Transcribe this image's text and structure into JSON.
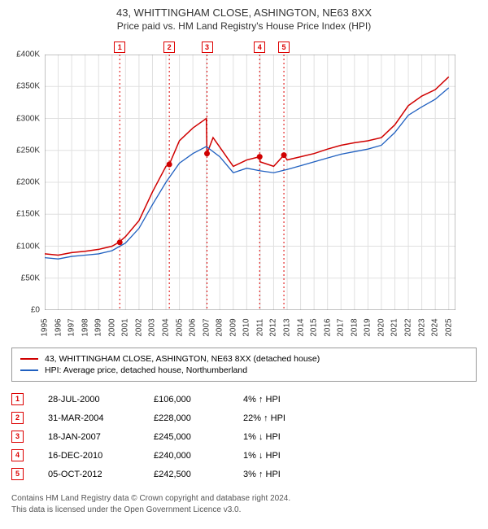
{
  "title": "43, WHITTINGHAM CLOSE, ASHINGTON, NE63 8XX",
  "subtitle": "Price paid vs. HM Land Registry's House Price Index (HPI)",
  "chart": {
    "type": "line",
    "background_color": "#ffffff",
    "grid_color": "#e0e0e0",
    "axis_color": "#888888",
    "xlim": [
      1995,
      2025.5
    ],
    "ylim": [
      0,
      400000
    ],
    "ytick_step": 50000,
    "y_ticks": [
      "£0",
      "£50K",
      "£100K",
      "£150K",
      "£200K",
      "£250K",
      "£300K",
      "£350K",
      "£400K"
    ],
    "x_ticks": [
      1995,
      1996,
      1997,
      1998,
      1999,
      2000,
      2001,
      2002,
      2003,
      2004,
      2005,
      2006,
      2007,
      2008,
      2009,
      2010,
      2011,
      2012,
      2013,
      2014,
      2015,
      2016,
      2017,
      2018,
      2019,
      2020,
      2021,
      2022,
      2023,
      2024,
      2025
    ],
    "series": [
      {
        "name": "43, WHITTINGHAM CLOSE, ASHINGTON, NE63 8XX (detached house)",
        "color": "#d00000",
        "line_width": 1.5,
        "data": [
          [
            1995,
            88000
          ],
          [
            1996,
            86000
          ],
          [
            1997,
            90000
          ],
          [
            1998,
            92000
          ],
          [
            1999,
            95000
          ],
          [
            2000,
            100000
          ],
          [
            2000.5,
            106000
          ],
          [
            2001,
            115000
          ],
          [
            2002,
            140000
          ],
          [
            2003,
            185000
          ],
          [
            2004,
            225000
          ],
          [
            2004.25,
            228000
          ],
          [
            2005,
            265000
          ],
          [
            2006,
            285000
          ],
          [
            2007,
            300000
          ],
          [
            2007.05,
            245000
          ],
          [
            2007.5,
            270000
          ],
          [
            2008,
            255000
          ],
          [
            2009,
            225000
          ],
          [
            2010,
            235000
          ],
          [
            2010.95,
            240000
          ],
          [
            2011,
            232000
          ],
          [
            2012,
            225000
          ],
          [
            2012.76,
            242500
          ],
          [
            2013,
            235000
          ],
          [
            2014,
            240000
          ],
          [
            2015,
            245000
          ],
          [
            2016,
            252000
          ],
          [
            2017,
            258000
          ],
          [
            2018,
            262000
          ],
          [
            2019,
            265000
          ],
          [
            2020,
            270000
          ],
          [
            2021,
            290000
          ],
          [
            2022,
            320000
          ],
          [
            2023,
            335000
          ],
          [
            2024,
            345000
          ],
          [
            2025,
            365000
          ]
        ]
      },
      {
        "name": "HPI: Average price, detached house, Northumberland",
        "color": "#2060c0",
        "line_width": 1.3,
        "data": [
          [
            1995,
            82000
          ],
          [
            1996,
            80000
          ],
          [
            1997,
            84000
          ],
          [
            1998,
            86000
          ],
          [
            1999,
            88000
          ],
          [
            2000,
            93000
          ],
          [
            2001,
            105000
          ],
          [
            2002,
            128000
          ],
          [
            2003,
            165000
          ],
          [
            2004,
            200000
          ],
          [
            2005,
            230000
          ],
          [
            2006,
            245000
          ],
          [
            2007,
            256000
          ],
          [
            2008,
            240000
          ],
          [
            2009,
            215000
          ],
          [
            2010,
            222000
          ],
          [
            2011,
            218000
          ],
          [
            2012,
            215000
          ],
          [
            2013,
            220000
          ],
          [
            2014,
            226000
          ],
          [
            2015,
            232000
          ],
          [
            2016,
            238000
          ],
          [
            2017,
            244000
          ],
          [
            2018,
            248000
          ],
          [
            2019,
            252000
          ],
          [
            2020,
            258000
          ],
          [
            2021,
            278000
          ],
          [
            2022,
            305000
          ],
          [
            2023,
            318000
          ],
          [
            2024,
            330000
          ],
          [
            2025,
            348000
          ]
        ]
      }
    ],
    "markers": [
      {
        "n": "1",
        "x": 2000.57,
        "y": 106000
      },
      {
        "n": "2",
        "x": 2004.25,
        "y": 228000
      },
      {
        "n": "3",
        "x": 2007.05,
        "y": 245000
      },
      {
        "n": "4",
        "x": 2010.96,
        "y": 240000
      },
      {
        "n": "5",
        "x": 2012.76,
        "y": 242500
      }
    ],
    "marker_color": "#d00000",
    "reference_line_color": "#d00000"
  },
  "legend": [
    {
      "color": "#d00000",
      "label": "43, WHITTINGHAM CLOSE, ASHINGTON, NE63 8XX (detached house)"
    },
    {
      "color": "#2060c0",
      "label": "HPI: Average price, detached house, Northumberland"
    }
  ],
  "events": [
    {
      "n": "1",
      "date": "28-JUL-2000",
      "price": "£106,000",
      "note": "4% ↑ HPI"
    },
    {
      "n": "2",
      "date": "31-MAR-2004",
      "price": "£228,000",
      "note": "22% ↑ HPI"
    },
    {
      "n": "3",
      "date": "18-JAN-2007",
      "price": "£245,000",
      "note": "1% ↓ HPI"
    },
    {
      "n": "4",
      "date": "16-DEC-2010",
      "price": "£240,000",
      "note": "1% ↓ HPI"
    },
    {
      "n": "5",
      "date": "05-OCT-2012",
      "price": "£242,500",
      "note": "3% ↑ HPI"
    }
  ],
  "footer_line1": "Contains HM Land Registry data © Crown copyright and database right 2024.",
  "footer_line2": "This data is licensed under the Open Government Licence v3.0."
}
